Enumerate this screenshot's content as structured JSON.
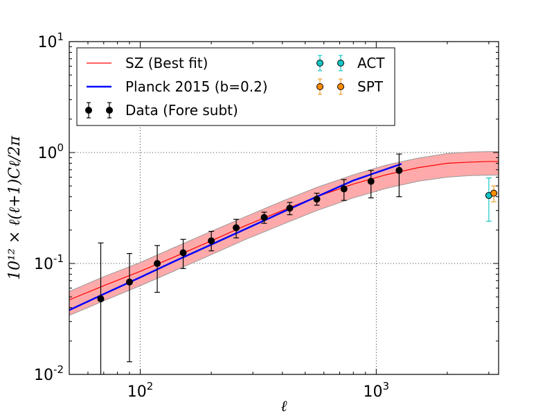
{
  "chart_data": {
    "type": "line",
    "title": "",
    "xlabel": "ℓ",
    "ylabel": "10¹² × ℓ(ℓ+1)Cℓ/2π",
    "x_scale": "log",
    "y_scale": "log",
    "xlim": [
      50,
      3300
    ],
    "ylim": [
      0.01,
      10
    ],
    "x_ticks": [
      {
        "value": 100,
        "base": "10",
        "exp": "2"
      },
      {
        "value": 1000,
        "base": "10",
        "exp": "3"
      }
    ],
    "y_ticks": [
      {
        "value": 0.01,
        "base": "10",
        "exp": "-2"
      },
      {
        "value": 0.1,
        "base": "10",
        "exp": "-1"
      },
      {
        "value": 1,
        "base": "10",
        "exp": "0"
      },
      {
        "value": 10,
        "base": "10",
        "exp": "1"
      }
    ],
    "grid": true,
    "legend_position": "top",
    "colors": {
      "sz_line": "#ff0000",
      "band_fill": "#ffaaaa",
      "band_edge": "#999999",
      "planck": "#0000ff",
      "data": "#000000",
      "act": "#17c4c4",
      "spt": "#ff8c00",
      "spt_err": "#e8a030"
    },
    "series": [
      {
        "name": "SZ (Best fit)",
        "kind": "line",
        "x": [
          50,
          70,
          100,
          140,
          200,
          280,
          400,
          560,
          800,
          1100,
          1500,
          2000,
          2500,
          3000,
          3300
        ],
        "y": [
          0.047,
          0.063,
          0.085,
          0.115,
          0.16,
          0.22,
          0.3,
          0.4,
          0.52,
          0.63,
          0.73,
          0.8,
          0.82,
          0.83,
          0.83
        ],
        "band_lower": [
          0.034,
          0.046,
          0.063,
          0.086,
          0.12,
          0.165,
          0.225,
          0.3,
          0.39,
          0.475,
          0.55,
          0.6,
          0.62,
          0.625,
          0.625
        ],
        "band_upper": [
          0.056,
          0.076,
          0.102,
          0.14,
          0.195,
          0.265,
          0.365,
          0.485,
          0.63,
          0.77,
          0.89,
          0.98,
          1.01,
          1.02,
          1.02
        ]
      },
      {
        "name": "Planck 2015 (b=0.2)",
        "kind": "line",
        "x": [
          50,
          70,
          100,
          140,
          200,
          280,
          400,
          560,
          800,
          1000,
          1280
        ],
        "y": [
          0.038,
          0.053,
          0.075,
          0.105,
          0.148,
          0.205,
          0.29,
          0.4,
          0.56,
          0.66,
          0.79
        ]
      },
      {
        "name": "Data (Fore subt)",
        "kind": "errorbar",
        "x": [
          68,
          90,
          118,
          152,
          200,
          255,
          335,
          430,
          560,
          730,
          950,
          1250
        ],
        "y": [
          0.048,
          0.068,
          0.1,
          0.125,
          0.16,
          0.21,
          0.26,
          0.315,
          0.38,
          0.47,
          0.55,
          0.69
        ],
        "yerr_low": [
          0.048,
          0.055,
          0.045,
          0.035,
          0.03,
          0.04,
          0.03,
          0.04,
          0.045,
          0.1,
          0.16,
          0.29
        ],
        "yerr_high": [
          0.105,
          0.055,
          0.045,
          0.04,
          0.035,
          0.04,
          0.03,
          0.04,
          0.05,
          0.1,
          0.14,
          0.28
        ]
      },
      {
        "name": "ACT",
        "kind": "errorbar",
        "x": [
          3000
        ],
        "y": [
          0.41
        ],
        "yerr_low": [
          0.17
        ],
        "yerr_high": [
          0.18
        ]
      },
      {
        "name": "SPT",
        "kind": "errorbar",
        "x": [
          3150
        ],
        "y": [
          0.43
        ],
        "yerr_low": [
          0.07
        ],
        "yerr_high": [
          0.07
        ]
      }
    ],
    "legend": {
      "sz": "SZ (Best fit)",
      "planck": "Planck 2015 (b=0.2)",
      "data": "Data (Fore subt)",
      "act": "ACT",
      "spt": "SPT"
    }
  }
}
